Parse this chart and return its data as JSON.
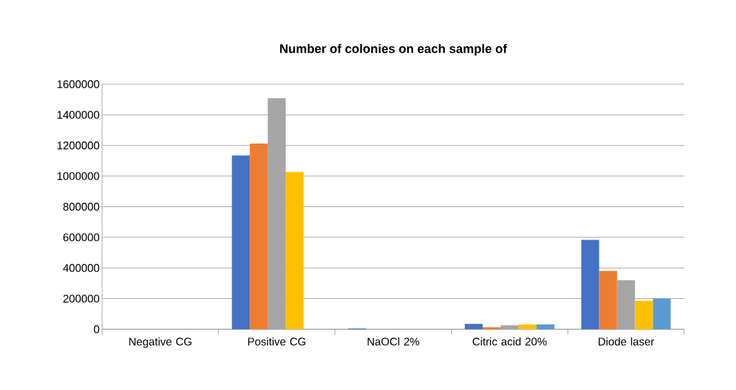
{
  "chart_data": {
    "type": "bar",
    "title": "Number of colonies on each sample of",
    "categories": [
      "Negative CG",
      "Positive CG",
      "NaOCl 2%",
      "Citric acid 20%",
      "Diode laser"
    ],
    "series": [
      {
        "color": "#4472c4",
        "values": [
          0,
          1135000,
          5000,
          35000,
          584000
        ]
      },
      {
        "color": "#ed7d31",
        "values": [
          0,
          1212000,
          0,
          13000,
          381000
        ]
      },
      {
        "color": "#a5a5a5",
        "values": [
          0,
          1509000,
          0,
          26000,
          320000
        ]
      },
      {
        "color": "#ffc000",
        "values": [
          0,
          1027000,
          0,
          31000,
          186000
        ]
      },
      {
        "color": "#5b9bd5",
        "values": [
          0,
          0,
          0,
          31000,
          200000
        ]
      }
    ],
    "ylim": [
      0,
      1600000
    ],
    "yticks": [
      0,
      200000,
      400000,
      600000,
      800000,
      1000000,
      1200000,
      1400000,
      1600000
    ],
    "grid": "y"
  }
}
